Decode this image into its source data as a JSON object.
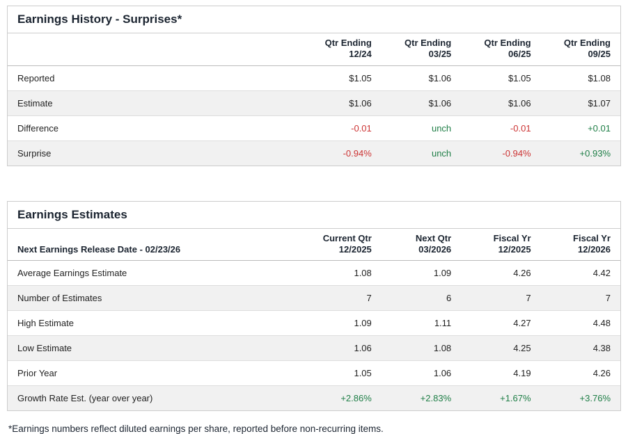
{
  "colors": {
    "negative": "#cc3333",
    "positive": "#1e7e46",
    "heading_text": "#1b2430",
    "row_alt": "#f1f1f1",
    "border": "#cccccc"
  },
  "history": {
    "title": "Earnings History - Surprises*",
    "col_headers": [
      {
        "line1": "Qtr Ending",
        "line2": "12/24"
      },
      {
        "line1": "Qtr Ending",
        "line2": "03/25"
      },
      {
        "line1": "Qtr Ending",
        "line2": "06/25"
      },
      {
        "line1": "Qtr Ending",
        "line2": "09/25"
      }
    ],
    "rows": [
      {
        "label": "Reported",
        "values": [
          "$1.05",
          "$1.06",
          "$1.05",
          "$1.08"
        ]
      },
      {
        "label": "Estimate",
        "values": [
          "$1.06",
          "$1.06",
          "$1.06",
          "$1.07"
        ]
      },
      {
        "label": "Difference",
        "values": [
          "-0.01",
          "unch",
          "-0.01",
          "+0.01"
        ]
      },
      {
        "label": "Surprise",
        "values": [
          "-0.94%",
          "unch",
          "-0.94%",
          "+0.93%"
        ]
      }
    ]
  },
  "estimates": {
    "title": "Earnings Estimates",
    "release_date_label": "Next Earnings Release Date - 02/23/26",
    "col_headers": [
      {
        "line1": "Current Qtr",
        "line2": "12/2025"
      },
      {
        "line1": "Next Qtr",
        "line2": "03/2026"
      },
      {
        "line1": "Fiscal Yr",
        "line2": "12/2025"
      },
      {
        "line1": "Fiscal Yr",
        "line2": "12/2026"
      }
    ],
    "rows": [
      {
        "label": "Average Earnings Estimate",
        "values": [
          "1.08",
          "1.09",
          "4.26",
          "4.42"
        ]
      },
      {
        "label": "Number of Estimates",
        "values": [
          "7",
          "6",
          "7",
          "7"
        ]
      },
      {
        "label": "High Estimate",
        "values": [
          "1.09",
          "1.11",
          "4.27",
          "4.48"
        ]
      },
      {
        "label": "Low Estimate",
        "values": [
          "1.06",
          "1.08",
          "4.25",
          "4.38"
        ]
      },
      {
        "label": "Prior Year",
        "values": [
          "1.05",
          "1.06",
          "4.19",
          "4.26"
        ]
      },
      {
        "label": "Growth Rate Est. (year over year)",
        "values": [
          "+2.86%",
          "+2.83%",
          "+1.67%",
          "+3.76%"
        ]
      }
    ]
  },
  "footnote": "*Earnings numbers reflect diluted earnings per share, reported before non-recurring items."
}
